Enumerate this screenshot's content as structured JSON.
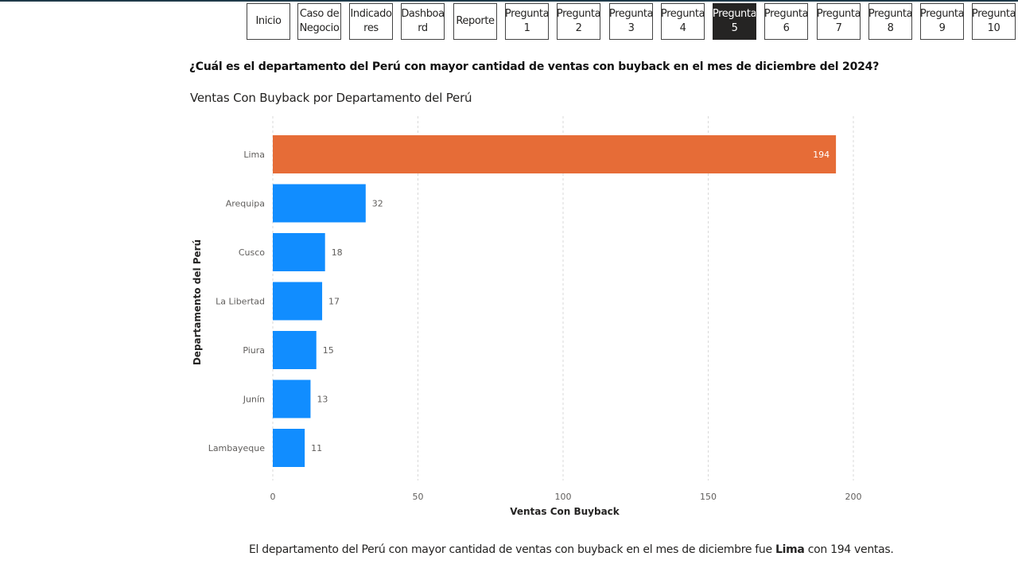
{
  "nav": {
    "buttons": [
      {
        "label": "Inicio",
        "active": false
      },
      {
        "label": "Caso de\nNegocio",
        "active": false
      },
      {
        "label": "Indicado\nres",
        "active": false
      },
      {
        "label": "Dashboa\nrd",
        "active": false
      },
      {
        "label": "Reporte",
        "active": false
      },
      {
        "label": "Pregunta\n1",
        "active": false
      },
      {
        "label": "Pregunta\n2",
        "active": false
      },
      {
        "label": "Pregunta\n3",
        "active": false
      },
      {
        "label": "Pregunta\n4",
        "active": false
      },
      {
        "label": "Pregunta\n5",
        "active": true
      },
      {
        "label": "Pregunta\n6",
        "active": false
      },
      {
        "label": "Pregunta\n7",
        "active": false
      },
      {
        "label": "Pregunta\n8",
        "active": false
      },
      {
        "label": "Pregunta\n9",
        "active": false
      },
      {
        "label": "Pregunta\n10",
        "active": false
      }
    ]
  },
  "question": "¿Cuál es el departamento del Perú con mayor cantidad de ventas con buyback en el mes de diciembre del 2024?",
  "chart_data": {
    "type": "bar",
    "orientation": "horizontal",
    "title": "Ventas Con Buyback por Departamento del Perú",
    "xlabel": "Ventas Con Buyback",
    "ylabel": "Departamento del Perú",
    "categories": [
      "Lima",
      "Arequipa",
      "Cusco",
      "La Libertad",
      "Piura",
      "Junín",
      "Lambayeque"
    ],
    "values": [
      194,
      32,
      18,
      17,
      15,
      13,
      11
    ],
    "xlim": [
      0,
      200
    ],
    "xticks": [
      0,
      50,
      100,
      150,
      200
    ],
    "grid": true,
    "colors": {
      "highlight": "#E66C37",
      "default": "#118DFF"
    },
    "highlight_index": 0
  },
  "conclusion": {
    "before": "El departamento del Perú con mayor cantidad de ventas con buyback en el mes de diciembre fue ",
    "highlight": "Lima",
    "after": " con 194 ventas."
  }
}
